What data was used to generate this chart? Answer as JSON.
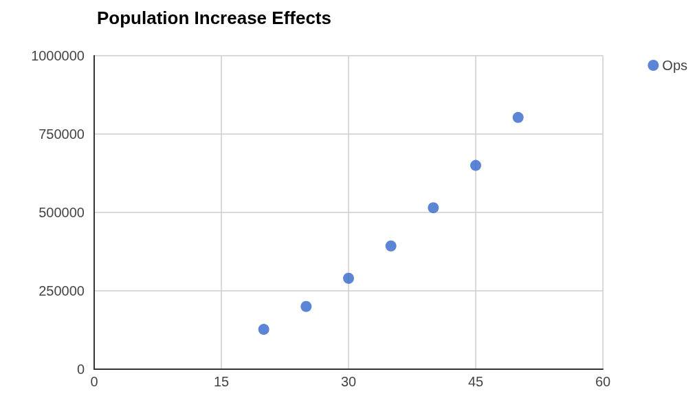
{
  "chart_data": {
    "type": "scatter",
    "title": "Population Increase Effects",
    "x": [
      20,
      25,
      30,
      35,
      40,
      45,
      50
    ],
    "series": [
      {
        "name": "Ops",
        "color": "#3366cc",
        "values": [
          127000,
          200000,
          290000,
          393000,
          515000,
          650000,
          803000
        ]
      }
    ],
    "xlim": [
      0,
      60
    ],
    "xticks": [
      0,
      15,
      30,
      45,
      60
    ],
    "ylim": [
      0,
      1000000
    ],
    "yticks": [
      0,
      250000,
      500000,
      750000,
      1000000
    ],
    "grid": true,
    "legend": "top right",
    "marker": "circle"
  }
}
